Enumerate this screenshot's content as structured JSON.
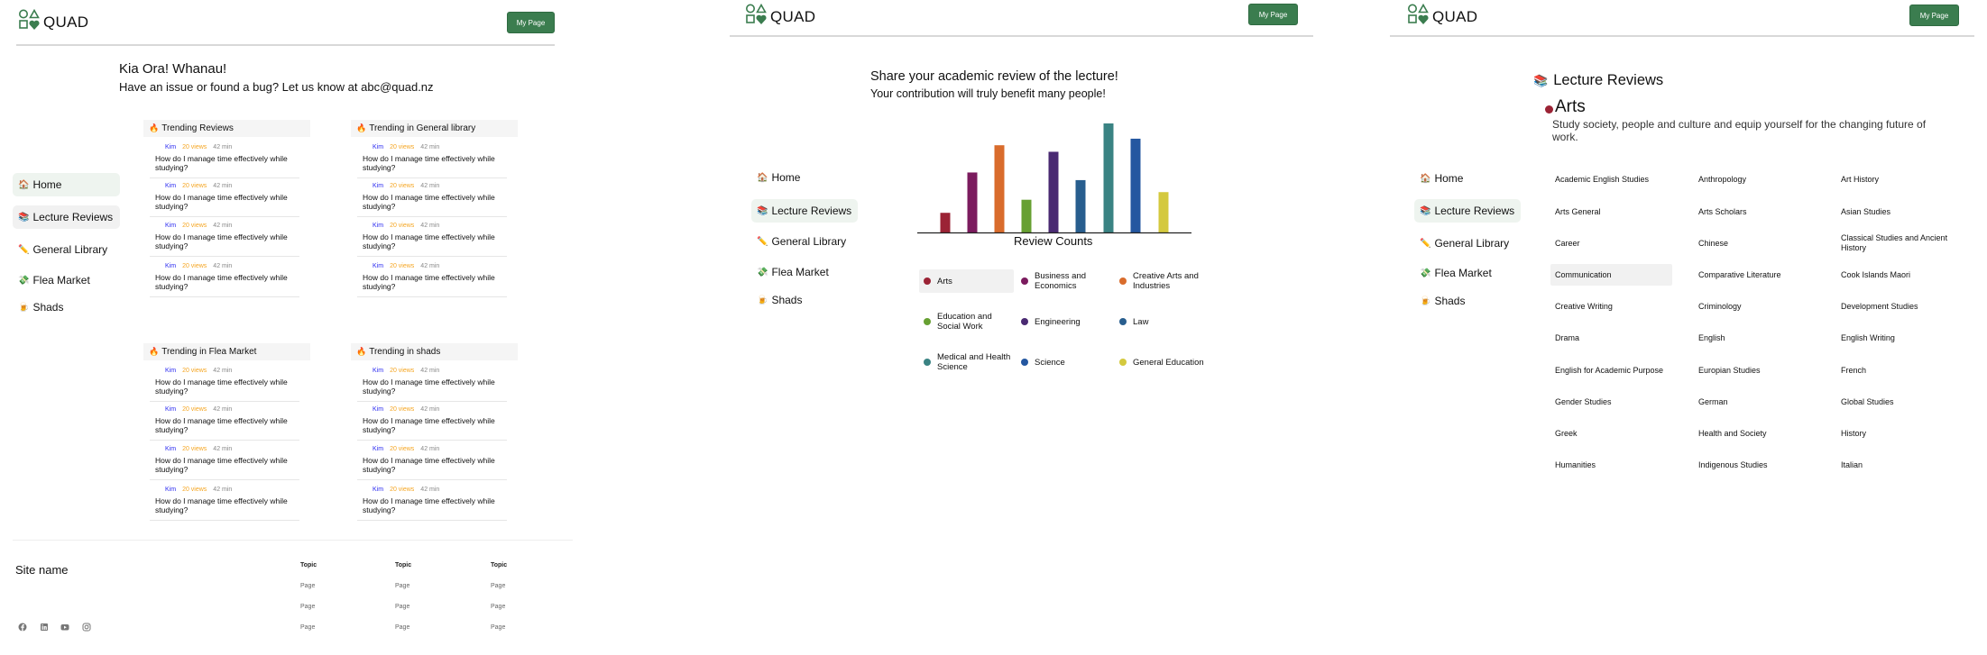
{
  "brand": {
    "name": "QUAD",
    "my_page": "My Page",
    "logo_color": "#3b7d4f"
  },
  "sidebar": {
    "items": [
      {
        "icon": "🏠",
        "label": "Home"
      },
      {
        "icon": "📚",
        "label": "Lecture Reviews"
      },
      {
        "icon": "✏️",
        "label": "General Library"
      },
      {
        "icon": "💸",
        "label": "Flea Market"
      },
      {
        "icon": "🍺",
        "label": "Shads"
      }
    ]
  },
  "home": {
    "title": "Kia Ora! Whanau!",
    "subtitle": "Have an issue or found a bug? Let us know at abc@quad.nz",
    "cards": [
      {
        "title": "Trending Reviews",
        "items": [
          {
            "author": "Kim",
            "views": "20 views",
            "time": "42 min",
            "question": "How do I manage time effectively while studying?"
          },
          {
            "author": "Kim",
            "views": "20 views",
            "time": "42 min",
            "question": "How do I manage time effectively while studying?"
          },
          {
            "author": "Kim",
            "views": "20 views",
            "time": "42 min",
            "question": "How do I manage time effectively while studying?"
          },
          {
            "author": "Kim",
            "views": "20 views",
            "time": "42 min",
            "question": "How do I manage time effectively while studying?"
          }
        ]
      },
      {
        "title": "Trending in General library",
        "items": [
          {
            "author": "Kim",
            "views": "20 views",
            "time": "42 min",
            "question": "How do I manage time effectively while studying?"
          },
          {
            "author": "Kim",
            "views": "20 views",
            "time": "42 min",
            "question": "How do I manage time effectively while studying?"
          },
          {
            "author": "Kim",
            "views": "20 views",
            "time": "42 min",
            "question": "How do I manage time effectively while studying?"
          },
          {
            "author": "Kim",
            "views": "20 views",
            "time": "42 min",
            "question": "How do I manage time effectively while studying?"
          }
        ]
      },
      {
        "title": "Trending in Flea Market",
        "items": [
          {
            "author": "Kim",
            "views": "20 views",
            "time": "42 min",
            "question": "How do I manage time effectively while studying?"
          },
          {
            "author": "Kim",
            "views": "20 views",
            "time": "42 min",
            "question": "How do I manage time effectively while studying?"
          },
          {
            "author": "Kim",
            "views": "20 views",
            "time": "42 min",
            "question": "How do I manage time effectively while studying?"
          },
          {
            "author": "Kim",
            "views": "20 views",
            "time": "42 min",
            "question": "How do I manage time effectively while studying?"
          }
        ]
      },
      {
        "title": "Trending in shads",
        "items": [
          {
            "author": "Kim",
            "views": "20 views",
            "time": "42 min",
            "question": "How do I manage time effectively while studying?"
          },
          {
            "author": "Kim",
            "views": "20 views",
            "time": "42 min",
            "question": "How do I manage time effectively while studying?"
          },
          {
            "author": "Kim",
            "views": "20 views",
            "time": "42 min",
            "question": "How do I manage time effectively while studying?"
          },
          {
            "author": "Kim",
            "views": "20 views",
            "time": "42 min",
            "question": "How do I manage time effectively while studying?"
          }
        ]
      }
    ],
    "footer": {
      "site_name": "Site name",
      "columns": [
        {
          "topic": "Topic",
          "pages": [
            "Page",
            "Page",
            "Page"
          ]
        },
        {
          "topic": "Topic",
          "pages": [
            "Page",
            "Page",
            "Page"
          ]
        },
        {
          "topic": "Topic",
          "pages": [
            "Page",
            "Page",
            "Page"
          ]
        }
      ],
      "social_icons": [
        "facebook-icon",
        "linkedin-icon",
        "youtube-icon",
        "instagram-icon"
      ]
    }
  },
  "reviews_overview": {
    "title": "Share your academic review of the lecture!",
    "subtitle": "Your contribution will truly benefit many people!"
  },
  "chart_data": {
    "type": "bar",
    "title": "Review Counts",
    "categories": [
      "Arts",
      "Business and Economics",
      "Creative Arts and Industries",
      "Education and Social Work",
      "Engineering",
      "Law",
      "Medical and Health Science",
      "Science",
      "General Education"
    ],
    "values": [
      18,
      55,
      80,
      30,
      74,
      48,
      100,
      86,
      37
    ],
    "colors": [
      "#9b2335",
      "#7b1b5e",
      "#d96c2c",
      "#67a032",
      "#4a2a72",
      "#285e8e",
      "#3a8383",
      "#2457a0",
      "#d4c93e"
    ],
    "axes_shown": false,
    "grid": false,
    "legend_placement": "bottom",
    "selected_legend": "Arts"
  },
  "arts_page": {
    "title_icon": "📚",
    "title": "Lecture Reviews",
    "category": "Arts",
    "category_color": "#9b2335",
    "description": "Study society, people and culture and equip yourself for the changing future of work.",
    "selected": "Communication",
    "subjects": [
      "Academic English Studies",
      "Anthropology",
      "Art History",
      "Arts General",
      "Arts Scholars",
      "Asian Studies",
      "Career",
      "Chinese",
      "Classical Studies and Ancient History",
      "Communication",
      "Comparative Literature",
      "Cook Islands Maori",
      "Creative Writing",
      "Criminology",
      "Development Studies",
      "Drama",
      "English",
      "English Writing",
      "English for Academic Purpose",
      "Europian Studies",
      "French",
      "Gender Studies",
      "German",
      "Global Studies",
      "Greek",
      "Health and Society",
      "History",
      "Humanities",
      "Indigenous Studies",
      "Italian"
    ]
  }
}
